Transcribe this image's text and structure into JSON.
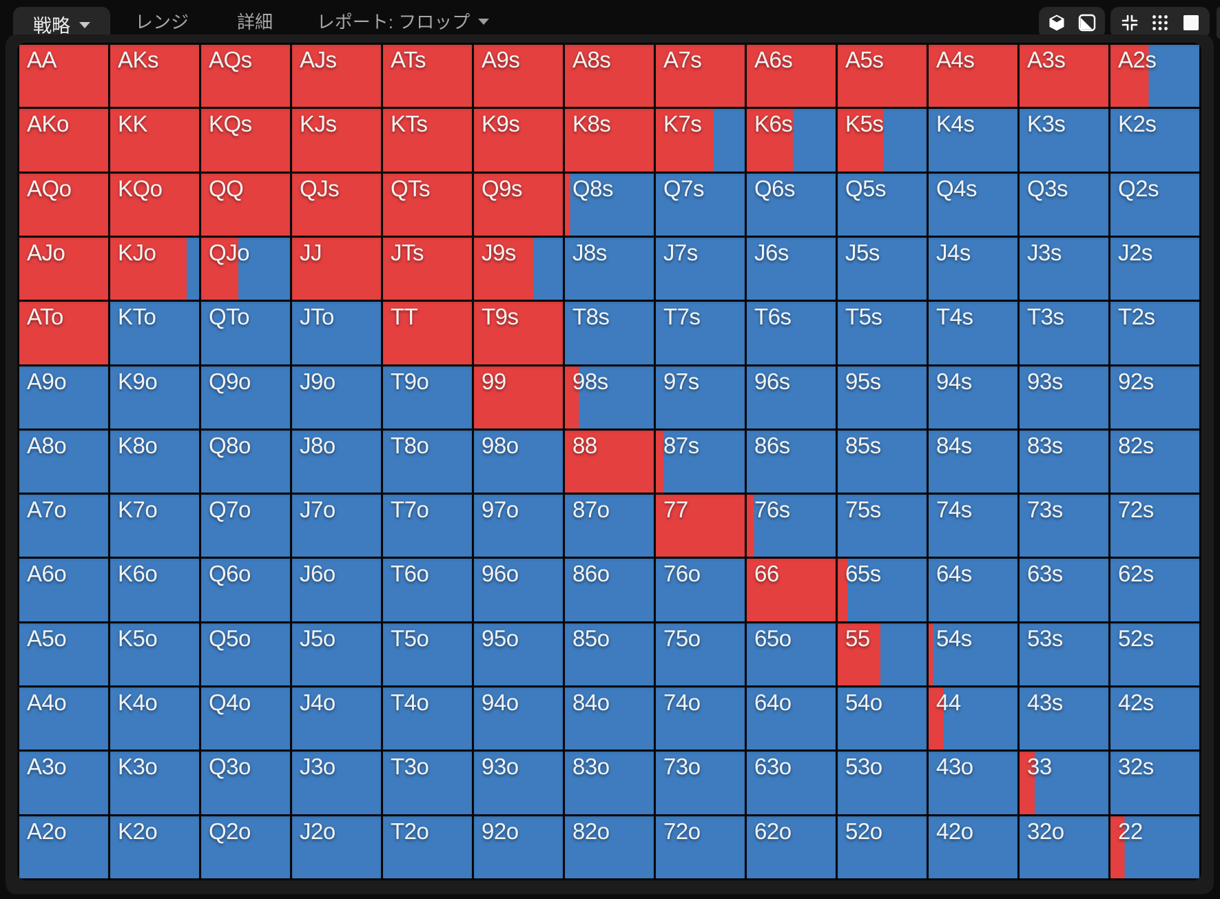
{
  "tabs": [
    {
      "label": "戦略",
      "state": "active",
      "caret": true
    },
    {
      "label": "レンジ",
      "state": "inactive",
      "caret": false
    },
    {
      "label": "詳細",
      "state": "inactive",
      "caret": false
    },
    {
      "label": "レポート: フロップ",
      "state": "inactive",
      "caret": true
    }
  ],
  "toolbar": {
    "group1_icons": [
      "cube-icon",
      "diagonal-half-square-icon"
    ],
    "group2_icons": [
      "collapse-icon",
      "dots-grid-icon",
      "filled-square-icon"
    ]
  },
  "colors": {
    "raise_red": "#e54040",
    "call_blue": "#3e7cbf",
    "grid_line": "#070707",
    "panel": "#1c1c1c",
    "tab_bg": "#272727"
  },
  "grid": {
    "note": "red value = fraction of cell filled red from left (raise frequency), remainder blue (call)",
    "rows": [
      [
        [
          "AA",
          1
        ],
        [
          "AKs",
          1
        ],
        [
          "AQs",
          1
        ],
        [
          "AJs",
          1
        ],
        [
          "ATs",
          1
        ],
        [
          "A9s",
          1
        ],
        [
          "A8s",
          1
        ],
        [
          "A7s",
          1
        ],
        [
          "A6s",
          1
        ],
        [
          "A5s",
          1
        ],
        [
          "A4s",
          1
        ],
        [
          "A3s",
          1
        ],
        [
          "A2s",
          0.43
        ]
      ],
      [
        [
          "AKo",
          1
        ],
        [
          "KK",
          1
        ],
        [
          "KQs",
          1
        ],
        [
          "KJs",
          1
        ],
        [
          "KTs",
          1
        ],
        [
          "K9s",
          1
        ],
        [
          "K8s",
          1
        ],
        [
          "K7s",
          0.65
        ],
        [
          "K6s",
          0.52
        ],
        [
          "K5s",
          0.51
        ],
        [
          "K4s",
          0
        ],
        [
          "K3s",
          0
        ],
        [
          "K2s",
          0
        ]
      ],
      [
        [
          "AQo",
          1
        ],
        [
          "KQo",
          1
        ],
        [
          "QQ",
          1
        ],
        [
          "QJs",
          1
        ],
        [
          "QTs",
          1
        ],
        [
          "Q9s",
          1
        ],
        [
          "Q8s",
          0.06
        ],
        [
          "Q7s",
          0
        ],
        [
          "Q6s",
          0
        ],
        [
          "Q5s",
          0
        ],
        [
          "Q4s",
          0
        ],
        [
          "Q3s",
          0
        ],
        [
          "Q2s",
          0
        ]
      ],
      [
        [
          "AJo",
          1
        ],
        [
          "KJo",
          0.86
        ],
        [
          "QJo",
          0.42
        ],
        [
          "JJ",
          1
        ],
        [
          "JTs",
          1
        ],
        [
          "J9s",
          0.67
        ],
        [
          "J8s",
          0
        ],
        [
          "J7s",
          0
        ],
        [
          "J6s",
          0
        ],
        [
          "J5s",
          0
        ],
        [
          "J4s",
          0
        ],
        [
          "J3s",
          0
        ],
        [
          "J2s",
          0
        ]
      ],
      [
        [
          "ATo",
          1
        ],
        [
          "KTo",
          0
        ],
        [
          "QTo",
          0
        ],
        [
          "JTo",
          0
        ],
        [
          "TT",
          1
        ],
        [
          "T9s",
          1
        ],
        [
          "T8s",
          0
        ],
        [
          "T7s",
          0
        ],
        [
          "T6s",
          0
        ],
        [
          "T5s",
          0
        ],
        [
          "T4s",
          0
        ],
        [
          "T3s",
          0
        ],
        [
          "T2s",
          0
        ]
      ],
      [
        [
          "A9o",
          0
        ],
        [
          "K9o",
          0
        ],
        [
          "Q9o",
          0
        ],
        [
          "J9o",
          0
        ],
        [
          "T9o",
          0
        ],
        [
          "99",
          1
        ],
        [
          "98s",
          0.16
        ],
        [
          "97s",
          0
        ],
        [
          "96s",
          0
        ],
        [
          "95s",
          0
        ],
        [
          "94s",
          0
        ],
        [
          "93s",
          0
        ],
        [
          "92s",
          0
        ]
      ],
      [
        [
          "A8o",
          0
        ],
        [
          "K8o",
          0
        ],
        [
          "Q8o",
          0
        ],
        [
          "J8o",
          0
        ],
        [
          "T8o",
          0
        ],
        [
          "98o",
          0
        ],
        [
          "88",
          1
        ],
        [
          "87s",
          0.09
        ],
        [
          "86s",
          0
        ],
        [
          "85s",
          0
        ],
        [
          "84s",
          0
        ],
        [
          "83s",
          0
        ],
        [
          "82s",
          0
        ]
      ],
      [
        [
          "A7o",
          0
        ],
        [
          "K7o",
          0
        ],
        [
          "Q7o",
          0
        ],
        [
          "J7o",
          0
        ],
        [
          "T7o",
          0
        ],
        [
          "97o",
          0
        ],
        [
          "87o",
          0
        ],
        [
          "77",
          1
        ],
        [
          "76s",
          0.08
        ],
        [
          "75s",
          0
        ],
        [
          "74s",
          0
        ],
        [
          "73s",
          0
        ],
        [
          "72s",
          0
        ]
      ],
      [
        [
          "A6o",
          0
        ],
        [
          "K6o",
          0
        ],
        [
          "Q6o",
          0
        ],
        [
          "J6o",
          0
        ],
        [
          "T6o",
          0
        ],
        [
          "96o",
          0
        ],
        [
          "86o",
          0
        ],
        [
          "76o",
          0
        ],
        [
          "66",
          1
        ],
        [
          "65s",
          0.11
        ],
        [
          "64s",
          0
        ],
        [
          "63s",
          0
        ],
        [
          "62s",
          0
        ]
      ],
      [
        [
          "A5o",
          0
        ],
        [
          "K5o",
          0
        ],
        [
          "Q5o",
          0
        ],
        [
          "J5o",
          0
        ],
        [
          "T5o",
          0
        ],
        [
          "95o",
          0
        ],
        [
          "85o",
          0
        ],
        [
          "75o",
          0
        ],
        [
          "65o",
          0
        ],
        [
          "55",
          0.48
        ],
        [
          "54s",
          0.05
        ],
        [
          "53s",
          0
        ],
        [
          "52s",
          0
        ]
      ],
      [
        [
          "A4o",
          0
        ],
        [
          "K4o",
          0
        ],
        [
          "Q4o",
          0
        ],
        [
          "J4o",
          0
        ],
        [
          "T4o",
          0
        ],
        [
          "94o",
          0
        ],
        [
          "84o",
          0
        ],
        [
          "74o",
          0
        ],
        [
          "64o",
          0
        ],
        [
          "54o",
          0
        ],
        [
          "44",
          0.17
        ],
        [
          "43s",
          0
        ],
        [
          "42s",
          0
        ]
      ],
      [
        [
          "A3o",
          0
        ],
        [
          "K3o",
          0
        ],
        [
          "Q3o",
          0
        ],
        [
          "J3o",
          0
        ],
        [
          "T3o",
          0
        ],
        [
          "93o",
          0
        ],
        [
          "83o",
          0
        ],
        [
          "73o",
          0
        ],
        [
          "63o",
          0
        ],
        [
          "53o",
          0
        ],
        [
          "43o",
          0
        ],
        [
          "33",
          0.17
        ],
        [
          "32s",
          0
        ]
      ],
      [
        [
          "A2o",
          0
        ],
        [
          "K2o",
          0
        ],
        [
          "Q2o",
          0
        ],
        [
          "J2o",
          0
        ],
        [
          "T2o",
          0
        ],
        [
          "92o",
          0
        ],
        [
          "82o",
          0
        ],
        [
          "72o",
          0
        ],
        [
          "62o",
          0
        ],
        [
          "52o",
          0
        ],
        [
          "42o",
          0
        ],
        [
          "32o",
          0
        ],
        [
          "22",
          0.16
        ]
      ]
    ]
  }
}
